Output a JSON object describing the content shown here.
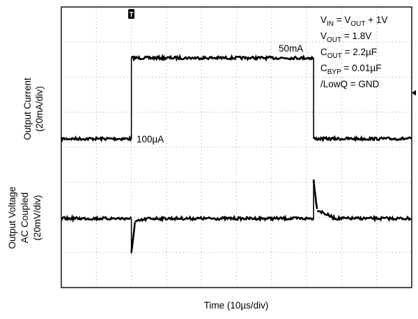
{
  "chart_data": {
    "type": "line",
    "title": "",
    "xlabel": "Time (10µs/div)",
    "ylabels": {
      "current": [
        "Output Current",
        "(20mA/div)"
      ],
      "voltage": [
        "Output Voltage",
        "AC Coupled",
        "(20mV/div)"
      ]
    },
    "grid": true,
    "xlim": [
      0,
      100
    ],
    "x_unit": "µs",
    "trigger_marker": "T",
    "series": [
      {
        "x": [
          0,
          20,
          20,
          72,
          72,
          100
        ],
        "y": [
          0.1,
          0.1,
          50,
          50,
          0.1,
          0.1
        ],
        "unit": "mA"
      },
      {
        "x": [
          0,
          20,
          20,
          21,
          25,
          72,
          72,
          73,
          78,
          100
        ],
        "y": [
          0,
          0,
          -20,
          -2,
          0,
          0,
          22,
          5,
          0,
          0
        ],
        "unit": "mV"
      }
    ],
    "annotations": {
      "high": "50mA",
      "low": "100µA"
    },
    "conditions": [
      {
        "parts": [
          {
            "t": "V"
          },
          {
            "t": "IN",
            "sub": true
          },
          {
            "t": " = V"
          },
          {
            "t": "OUT",
            "sub": true
          },
          {
            "t": " + 1V"
          }
        ]
      },
      {
        "parts": [
          {
            "t": "V"
          },
          {
            "t": "OUT",
            "sub": true
          },
          {
            "t": " = 1.8V"
          }
        ]
      },
      {
        "parts": [
          {
            "t": "C"
          },
          {
            "t": "OUT",
            "sub": true
          },
          {
            "t": " = 2.2µF"
          }
        ]
      },
      {
        "parts": [
          {
            "t": "C"
          },
          {
            "t": "BYP",
            "sub": true
          },
          {
            "t": " = 0.01µF"
          }
        ]
      },
      {
        "parts": [
          {
            "t": "/LowQ = GND"
          }
        ]
      }
    ],
    "colors": {
      "trace": "#000000",
      "grid": "#9a9a9a",
      "frame": "#000000"
    }
  }
}
